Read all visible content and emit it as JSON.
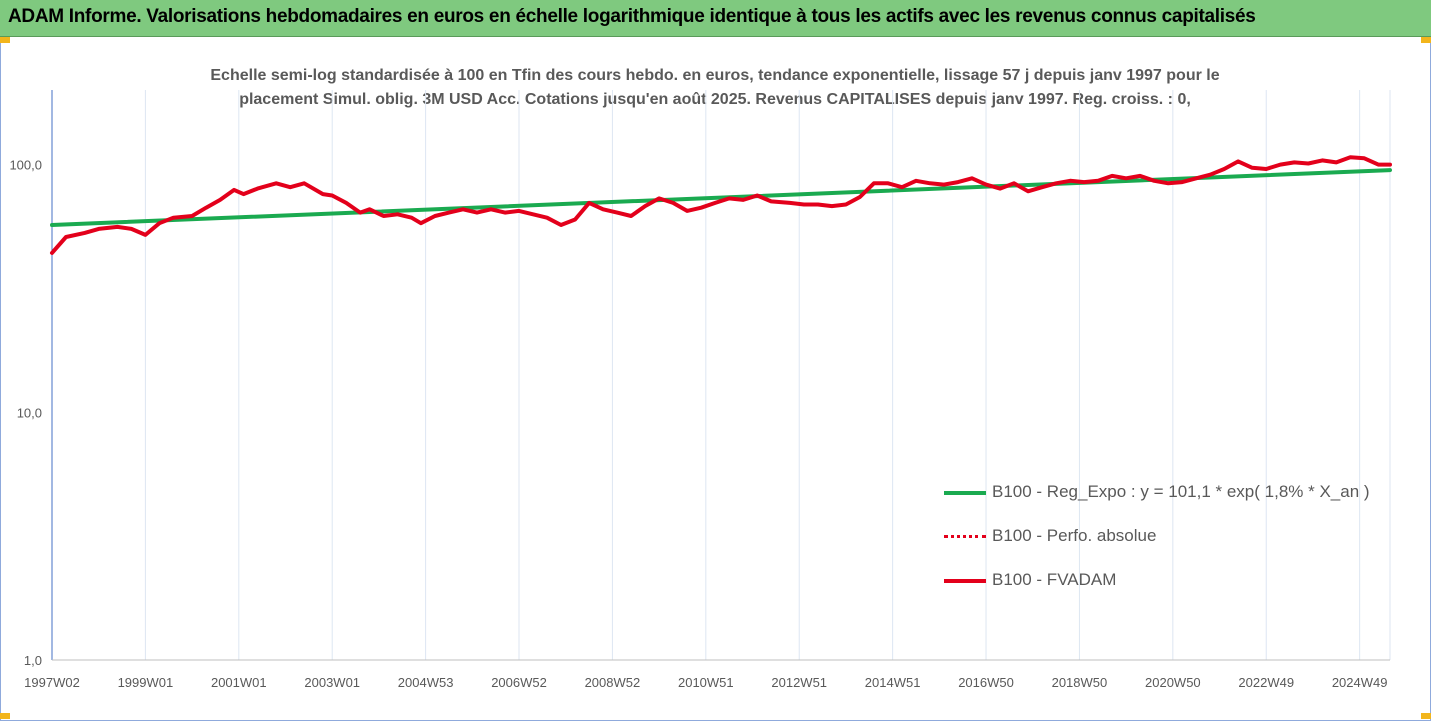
{
  "banner": {
    "title": "ADAM Informe. Valorisations hebdomadaires en euros en échelle logarithmique identique à tous les actifs avec les revenus connus capitalisés"
  },
  "colors": {
    "banner_bg": "#7fc97f",
    "trend": "#1aaa50",
    "series": "#e3001b",
    "axis_text": "#595959",
    "grid": "#dde6f2"
  },
  "chart_data": {
    "type": "line",
    "title": "Echelle semi-log standardisée à 100 en Tfin des cours hebdo. en euros, tendance exponentielle, lissage 57 j depuis janv 1997 pour le",
    "subtitle": "placement Simul. oblig. 3M USD Acc. Cotations jusqu'en août 2025. Revenus CAPITALISES depuis janv 1997. Reg. croiss. : 0,",
    "y_scale": "log",
    "ylim": [
      1,
      200
    ],
    "xlim": [
      1997.0,
      2025.65
    ],
    "y_ticks": [
      1,
      10,
      100
    ],
    "y_tick_labels": [
      "1,0",
      "10,0",
      "100,0"
    ],
    "x_tick_labels": [
      "1997W02",
      "1999W01",
      "2001W01",
      "2003W01",
      "2004W53",
      "2006W52",
      "2008W52",
      "2010W51",
      "2012W51",
      "2014W51",
      "2016W50",
      "2018W50",
      "2020W50",
      "2022W49",
      "2024W49"
    ],
    "x_tick_positions": [
      1997.0,
      1999.0,
      2001.0,
      2003.0,
      2005.0,
      2007.0,
      2009.0,
      2011.0,
      2013.0,
      2015.0,
      2017.0,
      2019.0,
      2021.0,
      2023.0,
      2025.0
    ],
    "grid": "vertical",
    "legend_position": "bottom-right",
    "series": [
      {
        "name": "B100 - Reg_Expo : y = 101,1 * exp( 1,8% *  X_an )",
        "style": "solid-thick",
        "x": [
          1997.0,
          2025.65
        ],
        "y": [
          57,
          95
        ]
      },
      {
        "name": "B100 - Perfo. absolue",
        "style": "dotted",
        "x": [],
        "y": []
      },
      {
        "name": "B100 - FVADAM",
        "style": "solid-thick",
        "x": [
          1997.0,
          1997.3,
          1997.7,
          1998.0,
          1998.4,
          1998.7,
          1999.0,
          1999.3,
          1999.6,
          2000.0,
          2000.3,
          2000.6,
          2000.9,
          2001.1,
          2001.4,
          2001.8,
          2002.1,
          2002.4,
          2002.8,
          2003.0,
          2003.3,
          2003.6,
          2003.8,
          2004.1,
          2004.4,
          2004.7,
          2004.9,
          2005.2,
          2005.5,
          2005.8,
          2006.1,
          2006.4,
          2006.7,
          2007.0,
          2007.3,
          2007.6,
          2007.9,
          2008.2,
          2008.5,
          2008.8,
          2009.1,
          2009.4,
          2009.7,
          2010.0,
          2010.3,
          2010.6,
          2010.9,
          2011.2,
          2011.5,
          2011.8,
          2012.1,
          2012.4,
          2012.8,
          2013.1,
          2013.4,
          2013.7,
          2014.0,
          2014.3,
          2014.6,
          2014.9,
          2015.2,
          2015.5,
          2015.8,
          2016.1,
          2016.4,
          2016.7,
          2017.0,
          2017.3,
          2017.6,
          2017.9,
          2018.2,
          2018.5,
          2018.8,
          2019.1,
          2019.4,
          2019.7,
          2020.0,
          2020.3,
          2020.6,
          2020.9,
          2021.2,
          2021.5,
          2021.8,
          2022.1,
          2022.4,
          2022.7,
          2023.0,
          2023.3,
          2023.6,
          2023.9,
          2024.2,
          2024.5,
          2024.8,
          2025.1,
          2025.4,
          2025.65
        ],
        "y": [
          44,
          51,
          53,
          55,
          56,
          55,
          52,
          58,
          61,
          62,
          67,
          72,
          79,
          76,
          80,
          84,
          81,
          84,
          76,
          75,
          70,
          64,
          66,
          62,
          63,
          61,
          58,
          62,
          64,
          66,
          64,
          66,
          64,
          65,
          63,
          61,
          57,
          60,
          70,
          66,
          64,
          62,
          68,
          73,
          70,
          65,
          67,
          70,
          73,
          72,
          75,
          71,
          70,
          69,
          69,
          68,
          69,
          74,
          84,
          84,
          81,
          86,
          84,
          83,
          85,
          88,
          83,
          80,
          84,
          78,
          81,
          84,
          86,
          85,
          86,
          90,
          88,
          90,
          86,
          84,
          85,
          88,
          91,
          96,
          103,
          97,
          96,
          100,
          102,
          101,
          104,
          102,
          107,
          106,
          100,
          100
        ]
      }
    ]
  },
  "legend": {
    "items": [
      {
        "label": "B100 - Reg_Expo : y = 101,1 * exp( 1,8% *  X_an )"
      },
      {
        "label": "B100 - Perfo. absolue"
      },
      {
        "label": "B100 - FVADAM"
      }
    ]
  }
}
